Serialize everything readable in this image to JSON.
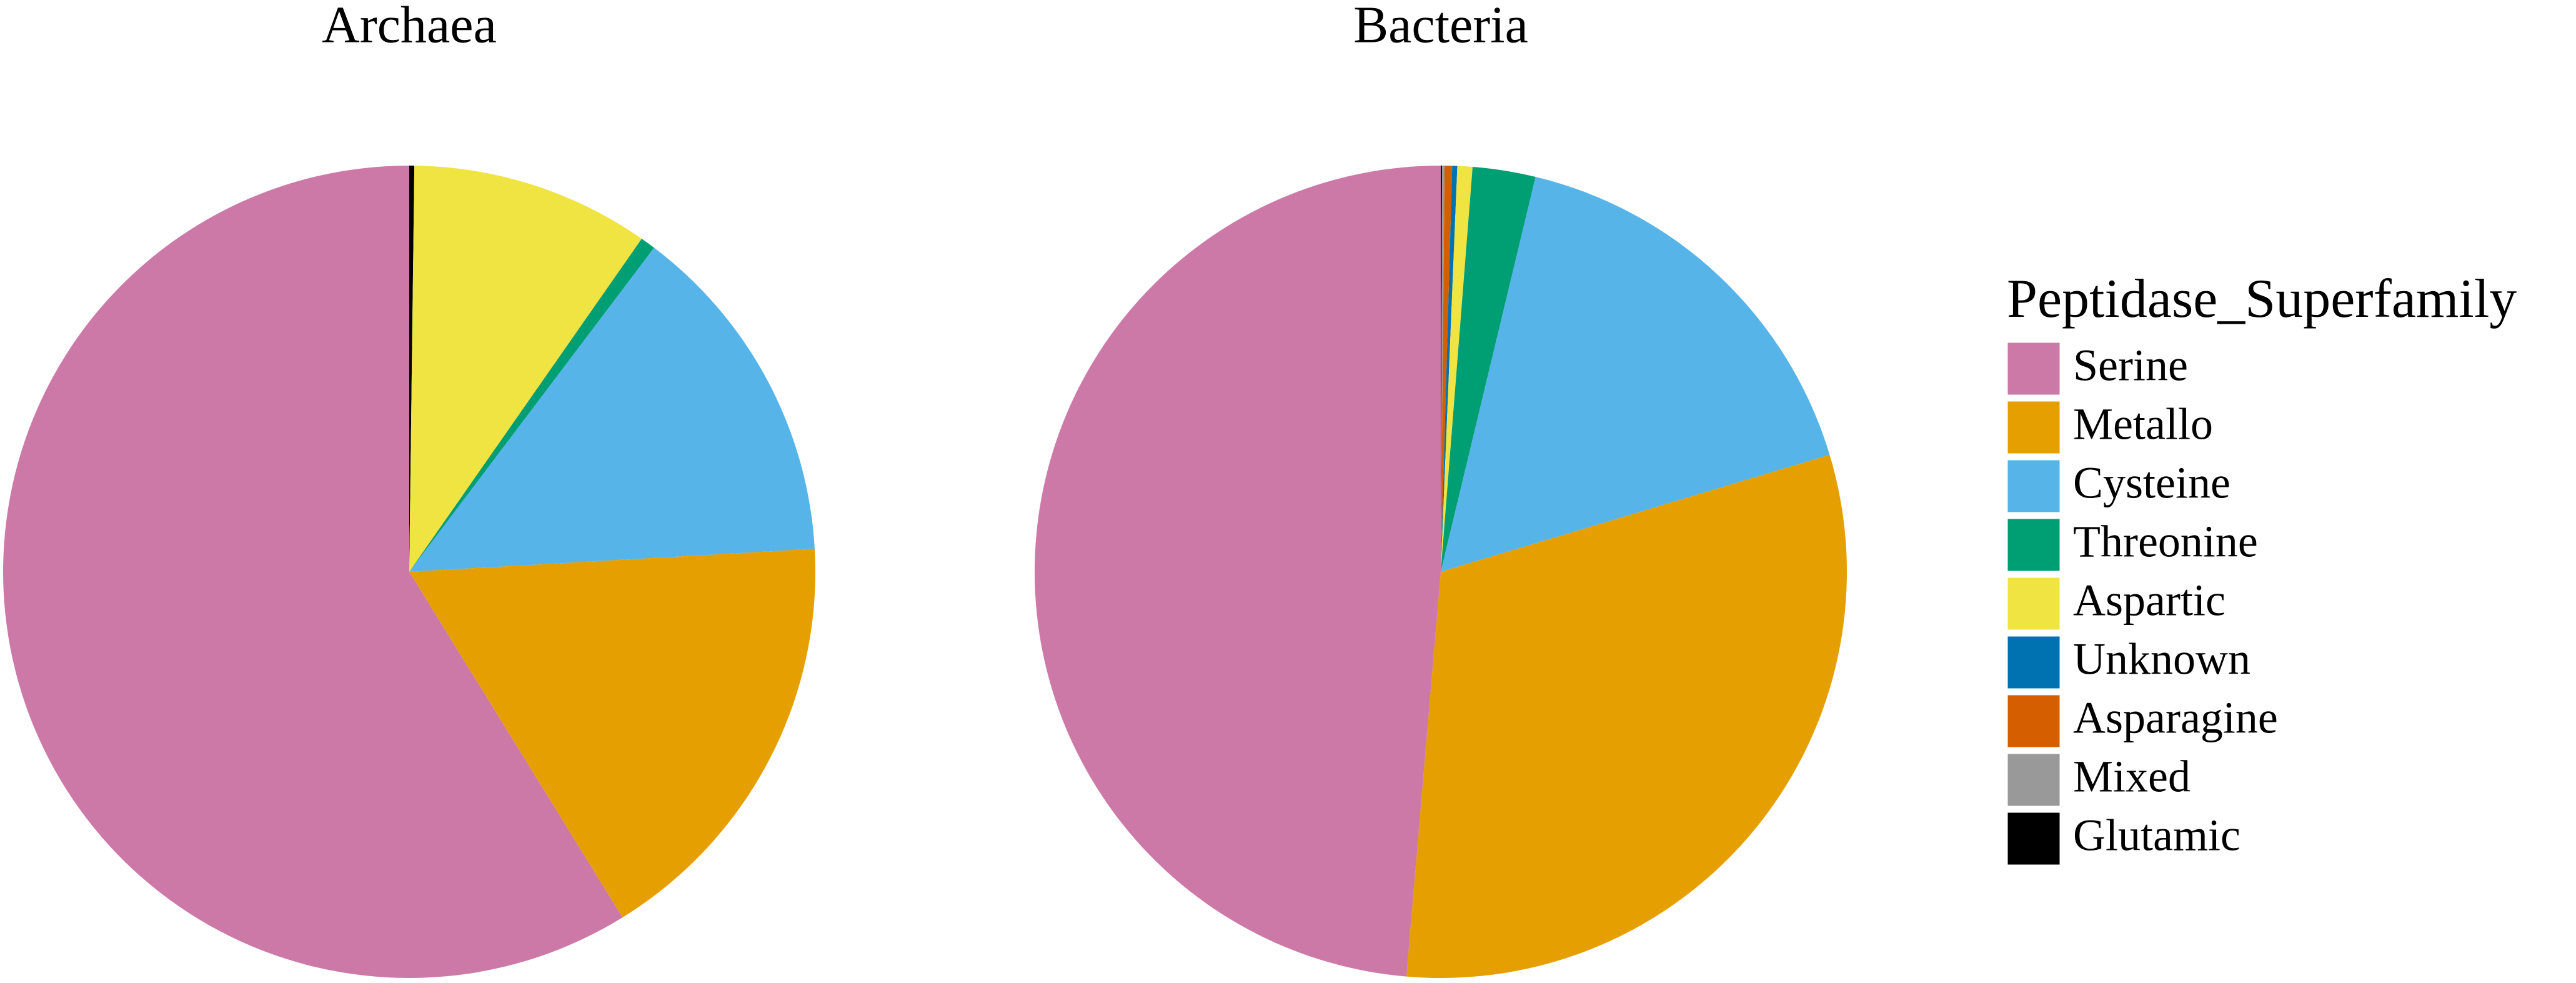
{
  "chart_data": [
    {
      "type": "pie",
      "title": "Archaea",
      "categories": [
        "Serine",
        "Metallo",
        "Cysteine",
        "Threonine",
        "Aspartic",
        "Unknown",
        "Asparagine",
        "Mixed",
        "Glutamic"
      ],
      "values": [
        58.8,
        17.1,
        13.8,
        0.6,
        9.5,
        0,
        0,
        0,
        0.2
      ],
      "colors": [
        "#CC79A7",
        "#E69F00",
        "#56B4E9",
        "#009E73",
        "#F0E442",
        "#0072B2",
        "#D55E00",
        "#999999",
        "#000000"
      ]
    },
    {
      "type": "pie",
      "title": "Bacteria",
      "categories": [
        "Serine",
        "Metallo",
        "Cysteine",
        "Threonine",
        "Aspartic",
        "Unknown",
        "Asparagine",
        "Mixed",
        "Glutamic"
      ],
      "values": [
        48.65,
        31.0,
        16.6,
        2.5,
        0.6,
        0.2,
        0.3,
        0.1,
        0.05
      ],
      "colors": [
        "#CC79A7",
        "#E69F00",
        "#56B4E9",
        "#009E73",
        "#F0E442",
        "#0072B2",
        "#D55E00",
        "#999999",
        "#000000"
      ]
    }
  ],
  "legend": {
    "title": "Peptidase_Superfamily"
  }
}
